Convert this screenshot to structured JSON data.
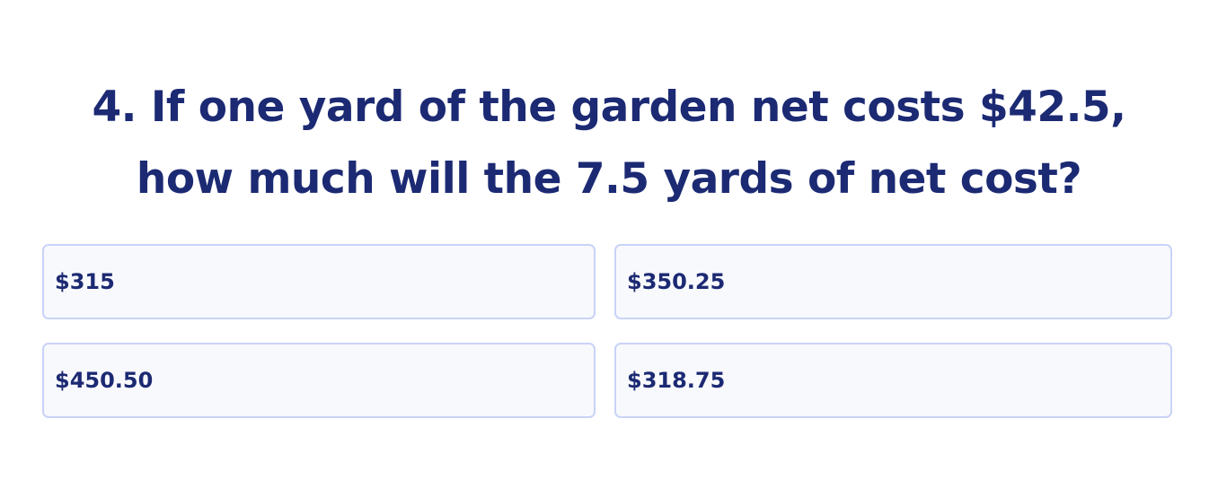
{
  "question": {
    "line1": "4. If one yard of the garden net costs $42.5,",
    "line2": "how much will the 7.5 yards of net cost?"
  },
  "options": [
    "$315",
    "$350.25",
    "$450.50",
    "$318.75"
  ]
}
